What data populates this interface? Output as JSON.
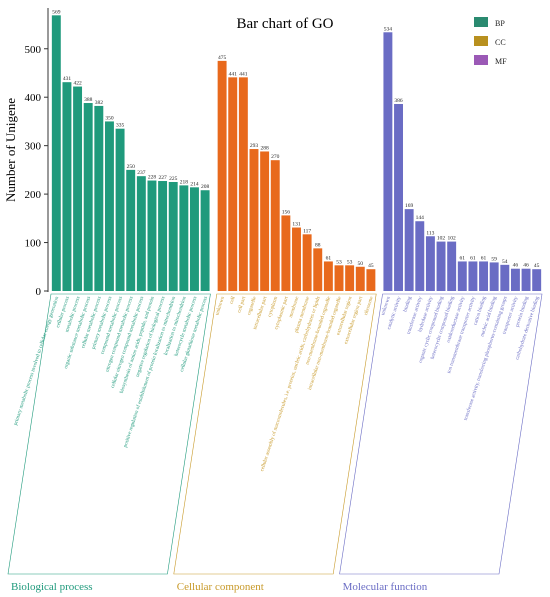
{
  "chart_data": {
    "type": "bar",
    "title": "Bar chart of GO",
    "y_label": "Number of Unigene",
    "ylim": [
      0,
      580
    ],
    "yticks": [
      0,
      100,
      200,
      300,
      400,
      500
    ],
    "groups": [
      {
        "name": "BP",
        "label": "Biological process",
        "color": "#1f9a7c",
        "legend_color": "#2a8a70",
        "label_color": "#1f9a7c",
        "categories": [
          "primary metabolic process involved in cellular energy generation",
          "cellular process",
          "metabolic process",
          "organic substance metabolic process",
          "cellular metabolic process",
          "primary metabolic process",
          "compound metabolic process",
          "nitrogen compound metabolic process",
          "cellular nitrogen compound metabolic process",
          "biosynthesis of amino acids, peptide, and protein",
          "negative regulation of biological process",
          "positive regulation of establishment of protein localization to mitochondrion",
          "localization to mitochondrion",
          "heterocycle metabolic process",
          "cellular glutathione metabolic process"
        ],
        "values": [
          569,
          431,
          422,
          388,
          382,
          350,
          335,
          250,
          237,
          228,
          227,
          225,
          218,
          214,
          208
        ]
      },
      {
        "name": "CC",
        "label": "Cellular component",
        "color": "#e8691c",
        "legend_color": "#b8901f",
        "label_color": "#c89a2a",
        "categories": [
          "unknown",
          "cell",
          "cell part",
          "organelle",
          "intracellular part",
          "cytoplasm",
          "cytoplasmic part",
          "membrane",
          "plasma membrane",
          "cellular assembly of macromolecules, i.e. proteins, nucleic acids, carbohydrates or lipids",
          "non-membrane-bounded organelle",
          "intracellular non-membrane-bounded organelle",
          "extracellular region",
          "extracellular region part",
          "ribosome"
        ],
        "values": [
          475,
          441,
          441,
          293,
          288,
          270,
          156,
          131,
          117,
          88,
          61,
          53,
          53,
          50,
          45
        ]
      },
      {
        "name": "MF",
        "label": "Molecular function",
        "color": "#6a6cc4",
        "legend_color": "#9b59b6",
        "label_color": "#6a6cc4",
        "categories": [
          "unknown",
          "catalytic activity",
          "binding",
          "transferase activity",
          "hydrolase activity",
          "organic cyclic compound binding",
          "heterocyclic compound binding",
          "oxidoreductase activity",
          "ion transmembrane transporter activity",
          "cation binding",
          "nucleic acid binding",
          "transferase activity, transferring phosphorus-containing groups",
          "transporter activity",
          "protein binding",
          "carbohydrate derivative binding"
        ],
        "values": [
          534,
          386,
          169,
          144,
          113,
          102,
          102,
          61,
          61,
          61,
          59,
          54,
          46,
          46,
          45
        ]
      }
    ]
  }
}
